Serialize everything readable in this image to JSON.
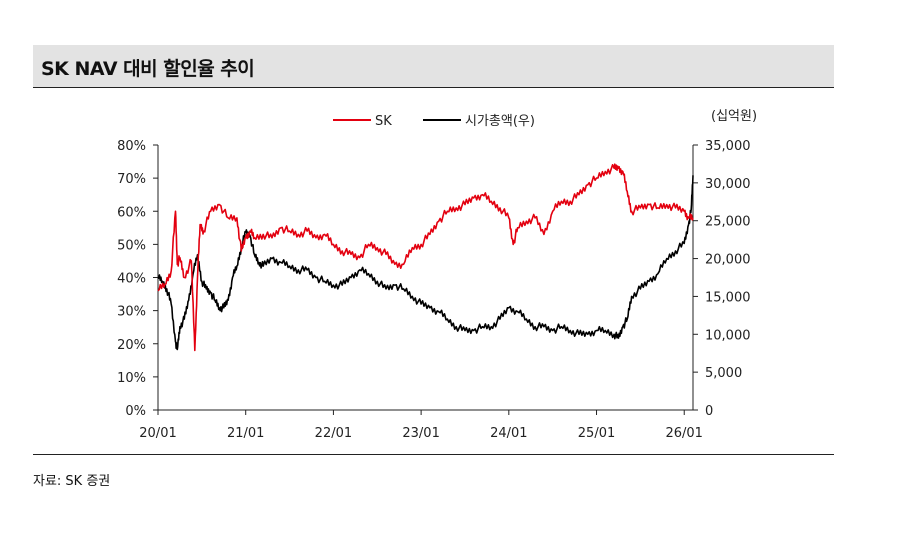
{
  "header": {
    "title": "SK NAV 대비 할인율 추이"
  },
  "footer": {
    "source": "자료: SK 증권"
  },
  "chart_data": {
    "type": "line",
    "unit_label_right": "(십억원)",
    "x_tick_labels": [
      "20/01",
      "21/01",
      "22/01",
      "23/01",
      "24/01",
      "25/01",
      "26/01"
    ],
    "x_range": [
      2020.0,
      2026.1
    ],
    "y_left": {
      "ticks": [
        "0%",
        "10%",
        "20%",
        "30%",
        "40%",
        "50%",
        "60%",
        "70%",
        "80%"
      ],
      "range": [
        0,
        80
      ]
    },
    "y_right": {
      "ticks": [
        "0",
        "5,000",
        "10,000",
        "15,000",
        "20,000",
        "25,000",
        "30,000",
        "35,000"
      ],
      "range": [
        0,
        35000
      ]
    },
    "grid": false,
    "legend_position": "top",
    "series": [
      {
        "name": "SK",
        "axis": "left",
        "color": "#e3000f",
        "x": [
          2020.0,
          2020.08,
          2020.15,
          2020.2,
          2020.22,
          2020.25,
          2020.3,
          2020.38,
          2020.42,
          2020.45,
          2020.48,
          2020.52,
          2020.6,
          2020.7,
          2020.8,
          2020.9,
          2020.95,
          2021.0,
          2021.05,
          2021.1,
          2021.2,
          2021.3,
          2021.4,
          2021.5,
          2021.6,
          2021.7,
          2021.8,
          2021.9,
          2022.0,
          2022.1,
          2022.2,
          2022.3,
          2022.4,
          2022.5,
          2022.6,
          2022.7,
          2022.8,
          2022.9,
          2023.0,
          2023.1,
          2023.2,
          2023.3,
          2023.4,
          2023.5,
          2023.6,
          2023.7,
          2023.8,
          2023.9,
          2024.0,
          2024.05,
          2024.1,
          2024.2,
          2024.3,
          2024.4,
          2024.5,
          2024.6,
          2024.7,
          2024.8,
          2024.9,
          2025.0,
          2025.1,
          2025.2,
          2025.25,
          2025.3,
          2025.35,
          2025.4,
          2025.5,
          2025.6,
          2025.7,
          2025.8,
          2025.9,
          2026.0,
          2026.05,
          2026.1
        ],
        "y": [
          36,
          38,
          42,
          60,
          44,
          46,
          40,
          45,
          18,
          40,
          56,
          54,
          60,
          62,
          58,
          58,
          48,
          52,
          54,
          52,
          53,
          52,
          55,
          54,
          53,
          54,
          52,
          53,
          50,
          48,
          47,
          46,
          50,
          49,
          47,
          44,
          44,
          49,
          50,
          53,
          57,
          60,
          61,
          62,
          64,
          65,
          63,
          61,
          58,
          50,
          55,
          57,
          58,
          53,
          60,
          63,
          63,
          65,
          68,
          70,
          72,
          73,
          73,
          72,
          66,
          60,
          61,
          62,
          61,
          62,
          61,
          60,
          58,
          58
        ]
      },
      {
        "name": "시가총액(우)",
        "axis": "right",
        "color": "#000000",
        "x": [
          2020.0,
          2020.05,
          2020.1,
          2020.15,
          2020.2,
          2020.22,
          2020.25,
          2020.3,
          2020.35,
          2020.4,
          2020.45,
          2020.5,
          2020.55,
          2020.6,
          2020.65,
          2020.7,
          2020.75,
          2020.8,
          2020.85,
          2020.9,
          2020.95,
          2021.0,
          2021.05,
          2021.1,
          2021.15,
          2021.2,
          2021.3,
          2021.4,
          2021.5,
          2021.6,
          2021.7,
          2021.8,
          2021.9,
          2022.0,
          2022.1,
          2022.2,
          2022.3,
          2022.4,
          2022.5,
          2022.6,
          2022.7,
          2022.8,
          2022.9,
          2023.0,
          2023.1,
          2023.2,
          2023.3,
          2023.4,
          2023.5,
          2023.6,
          2023.7,
          2023.8,
          2023.9,
          2024.0,
          2024.1,
          2024.2,
          2024.3,
          2024.4,
          2024.5,
          2024.6,
          2024.7,
          2024.8,
          2024.9,
          2025.0,
          2025.1,
          2025.2,
          2025.25,
          2025.3,
          2025.35,
          2025.4,
          2025.5,
          2025.6,
          2025.7,
          2025.8,
          2025.9,
          2026.0,
          2026.05,
          2026.08,
          2026.1
        ],
        "y": [
          17500,
          17000,
          16000,
          14000,
          9000,
          8000,
          11000,
          12000,
          14500,
          18000,
          20500,
          17000,
          16000,
          15500,
          14500,
          13500,
          13500,
          14500,
          17500,
          19000,
          21500,
          23500,
          23000,
          20500,
          19500,
          19000,
          20000,
          19500,
          19000,
          18500,
          18500,
          17500,
          17000,
          16500,
          16500,
          17500,
          18500,
          18000,
          17000,
          16000,
          16500,
          16000,
          15000,
          14000,
          13500,
          13000,
          12000,
          11000,
          10500,
          10500,
          11000,
          11000,
          12000,
          13500,
          13000,
          12000,
          11000,
          11000,
          10500,
          11000,
          10500,
          10000,
          10000,
          10500,
          10500,
          10000,
          9500,
          11000,
          12000,
          15000,
          16000,
          17000,
          18000,
          20000,
          21000,
          22000,
          24500,
          26500,
          31000
        ]
      }
    ]
  }
}
